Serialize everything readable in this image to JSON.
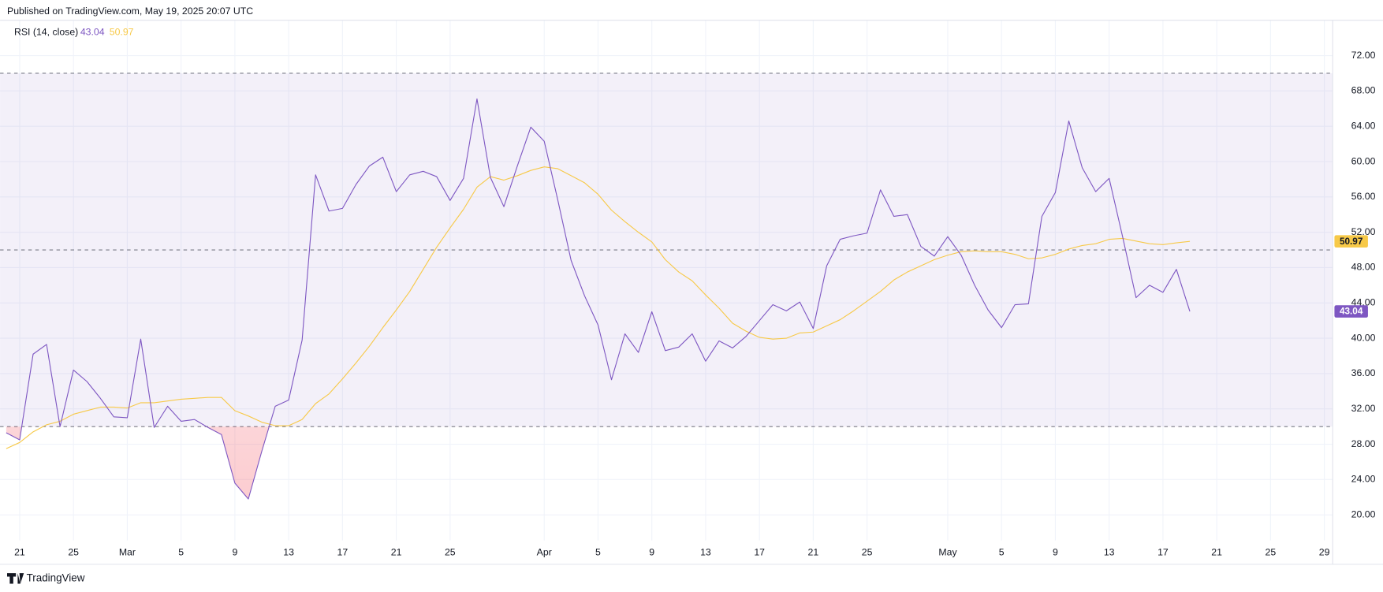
{
  "header": {
    "published": "Published on TradingView.com, May 19, 2025 20:07 UTC"
  },
  "footer": {
    "brand": "TradingView"
  },
  "chart_data": {
    "type": "line",
    "title": "RSI (14, close)",
    "x": [
      0,
      1,
      2,
      3,
      4,
      5,
      6,
      7,
      8,
      9,
      10,
      11,
      12,
      13,
      14,
      15,
      16,
      17,
      18,
      19,
      20,
      21,
      22,
      23,
      24,
      25,
      26,
      27,
      28,
      29,
      30,
      31,
      32,
      33,
      34,
      35,
      36,
      37,
      38,
      39,
      40,
      41,
      42,
      43,
      44,
      45,
      46,
      47,
      48,
      49,
      50,
      51,
      52,
      53,
      54,
      55,
      56,
      57,
      58,
      59,
      60,
      61,
      62,
      63,
      64,
      65,
      66,
      67,
      68,
      69,
      70,
      71,
      72,
      73,
      74,
      75,
      76,
      77,
      78,
      79,
      80,
      81,
      82,
      83,
      84,
      85,
      86,
      87,
      88
    ],
    "series": [
      {
        "color": "#7e57c2",
        "values": [
          29.3,
          28.5,
          38.2,
          39.3,
          30.0,
          36.4,
          35.1,
          33.2,
          31.1,
          31.0,
          39.9,
          29.9,
          32.3,
          30.6,
          30.8,
          29.9,
          29.1,
          23.6,
          21.8,
          27.2,
          32.3,
          33.0,
          39.8,
          58.5,
          54.4,
          54.7,
          57.4,
          59.5,
          60.5,
          56.6,
          58.5,
          58.9,
          58.3,
          55.6,
          58.1,
          67.1,
          58.2,
          54.9,
          59.5,
          63.9,
          62.3,
          55.7,
          48.8,
          44.8,
          41.5,
          35.3,
          40.5,
          38.4,
          43.0,
          38.6,
          39.0,
          40.5,
          37.4,
          39.7,
          38.9,
          40.2,
          42.0,
          43.8,
          43.1,
          44.1,
          41.1,
          48.2,
          51.2,
          51.6,
          51.9,
          56.8,
          53.8,
          54.0,
          50.4,
          49.3,
          51.5,
          49.4,
          46.0,
          43.2,
          41.2,
          43.8,
          43.9,
          53.8,
          56.5,
          64.6,
          59.3,
          56.6,
          58.1,
          51.5,
          44.6,
          46.0,
          45.2,
          47.8,
          43.04
        ]
      },
      {
        "color": "#f7c948",
        "values": [
          27.5,
          28.2,
          29.4,
          30.2,
          30.6,
          31.4,
          31.8,
          32.2,
          32.2,
          32.1,
          32.7,
          32.7,
          32.9,
          33.1,
          33.2,
          33.3,
          33.3,
          31.8,
          31.2,
          30.5,
          30.1,
          30.1,
          30.8,
          32.6,
          33.7,
          35.4,
          37.2,
          39.1,
          41.2,
          43.2,
          45.3,
          47.8,
          50.3,
          52.5,
          54.6,
          57.1,
          58.3,
          57.9,
          58.4,
          59.0,
          59.4,
          59.2,
          58.4,
          57.6,
          56.3,
          54.5,
          53.2,
          52.0,
          50.9,
          48.9,
          47.5,
          46.5,
          44.9,
          43.4,
          41.7,
          40.8,
          40.1,
          39.9,
          40.0,
          40.6,
          40.7,
          41.4,
          42.1,
          43.1,
          44.2,
          45.3,
          46.6,
          47.5,
          48.2,
          48.9,
          49.4,
          49.8,
          49.9,
          49.8,
          49.8,
          49.5,
          49.0,
          49.1,
          49.5,
          50.1,
          50.5,
          50.7,
          51.2,
          51.3,
          51.0,
          50.7,
          50.6,
          50.8,
          50.97
        ]
      }
    ],
    "upper_band": 70,
    "middle_band": 50,
    "lower_band": 30,
    "band_color": "#7e57c2",
    "oversold_color": "#f23645",
    "xlim": [
      -0.46,
      98.62
    ],
    "xticks": [
      {
        "value": 1,
        "label": "21"
      },
      {
        "value": 5,
        "label": "25"
      },
      {
        "value": 9,
        "label": "Mar"
      },
      {
        "value": 13,
        "label": "5"
      },
      {
        "value": 17,
        "label": "9"
      },
      {
        "value": 21,
        "label": "13"
      },
      {
        "value": 25,
        "label": "17"
      },
      {
        "value": 29,
        "label": "21"
      },
      {
        "value": 33,
        "label": "25"
      },
      {
        "value": 40,
        "label": "Apr"
      },
      {
        "value": 44,
        "label": "5"
      },
      {
        "value": 48,
        "label": "9"
      },
      {
        "value": 52,
        "label": "13"
      },
      {
        "value": 56,
        "label": "17"
      },
      {
        "value": 60,
        "label": "21"
      },
      {
        "value": 64,
        "label": "25"
      },
      {
        "value": 70,
        "label": "May"
      },
      {
        "value": 74,
        "label": "5"
      },
      {
        "value": 78,
        "label": "9"
      },
      {
        "value": 82,
        "label": "13"
      },
      {
        "value": 86,
        "label": "17"
      },
      {
        "value": 90,
        "label": "21"
      },
      {
        "value": 94,
        "label": "25"
      },
      {
        "value": 98,
        "label": "29"
      }
    ],
    "ylim": [
      17.1,
      76.0
    ],
    "yticks": [
      {
        "value": 20,
        "label": "20.00"
      },
      {
        "value": 24,
        "label": "24.00"
      },
      {
        "value": 28,
        "label": "28.00"
      },
      {
        "value": 32,
        "label": "32.00"
      },
      {
        "value": 36,
        "label": "36.00"
      },
      {
        "value": 40,
        "label": "40.00"
      },
      {
        "value": 44,
        "label": "44.00"
      },
      {
        "value": 48,
        "label": "48.00"
      },
      {
        "value": 52,
        "label": "52.00"
      },
      {
        "value": 56,
        "label": "56.00"
      },
      {
        "value": 60,
        "label": "60.00"
      },
      {
        "value": 64,
        "label": "64.00"
      },
      {
        "value": 68,
        "label": "68.00"
      },
      {
        "value": 72,
        "label": "72.00"
      }
    ],
    "grid": true
  }
}
